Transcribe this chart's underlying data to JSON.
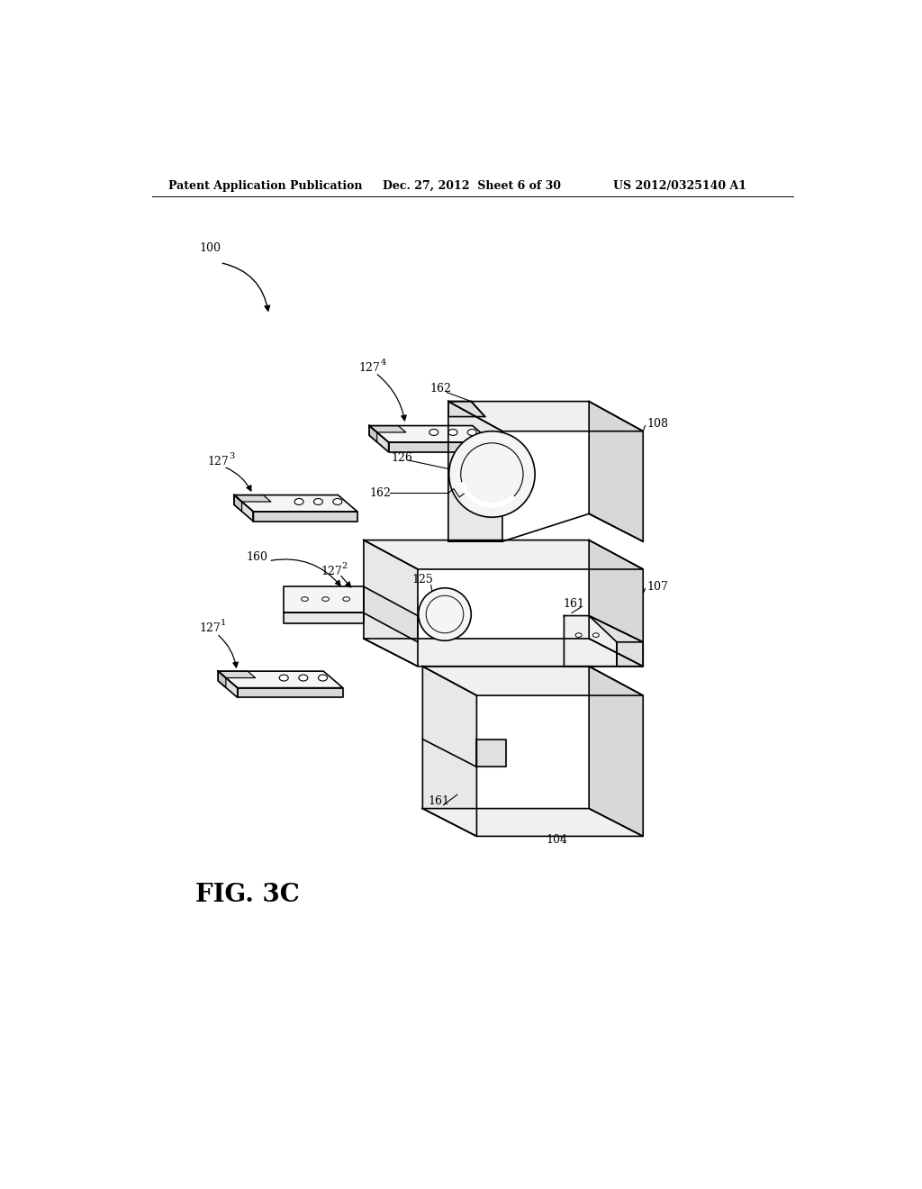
{
  "background_color": "#ffffff",
  "header_left": "Patent Application Publication",
  "header_mid": "Dec. 27, 2012  Sheet 6 of 30",
  "header_right": "US 2012/0325140 A1",
  "header_fontsize": 9,
  "line_color": "#000000",
  "lw": 1.2,
  "lw_thin": 0.8
}
